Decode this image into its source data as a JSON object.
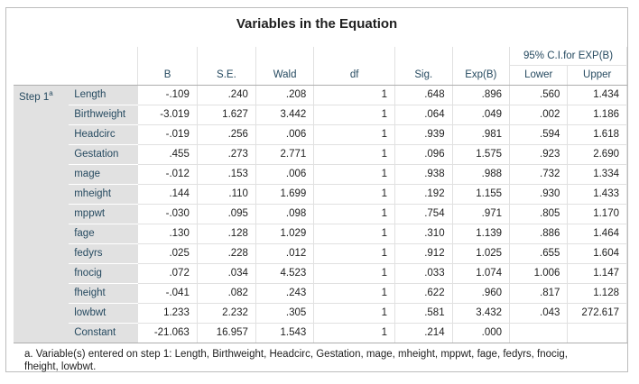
{
  "title": "Variables in the Equation",
  "ci_header": "95% C.I.for EXP(B)",
  "columns": [
    "B",
    "S.E.",
    "Wald",
    "df",
    "Sig.",
    "Exp(B)",
    "Lower",
    "Upper"
  ],
  "step_label": "Step 1",
  "step_sup": "a",
  "rows": [
    {
      "name": "Length",
      "B": "-.109",
      "SE": ".240",
      "Wald": ".208",
      "df": "1",
      "Sig": ".648",
      "ExpB": ".896",
      "Lower": ".560",
      "Upper": "1.434"
    },
    {
      "name": "Birthweight",
      "B": "-3.019",
      "SE": "1.627",
      "Wald": "3.442",
      "df": "1",
      "Sig": ".064",
      "ExpB": ".049",
      "Lower": ".002",
      "Upper": "1.186"
    },
    {
      "name": "Headcirc",
      "B": "-.019",
      "SE": ".256",
      "Wald": ".006",
      "df": "1",
      "Sig": ".939",
      "ExpB": ".981",
      "Lower": ".594",
      "Upper": "1.618"
    },
    {
      "name": "Gestation",
      "B": ".455",
      "SE": ".273",
      "Wald": "2.771",
      "df": "1",
      "Sig": ".096",
      "ExpB": "1.575",
      "Lower": ".923",
      "Upper": "2.690"
    },
    {
      "name": "mage",
      "B": "-.012",
      "SE": ".153",
      "Wald": ".006",
      "df": "1",
      "Sig": ".938",
      "ExpB": ".988",
      "Lower": ".732",
      "Upper": "1.334"
    },
    {
      "name": "mheight",
      "B": ".144",
      "SE": ".110",
      "Wald": "1.699",
      "df": "1",
      "Sig": ".192",
      "ExpB": "1.155",
      "Lower": ".930",
      "Upper": "1.433"
    },
    {
      "name": "mppwt",
      "B": "-.030",
      "SE": ".095",
      "Wald": ".098",
      "df": "1",
      "Sig": ".754",
      "ExpB": ".971",
      "Lower": ".805",
      "Upper": "1.170"
    },
    {
      "name": "fage",
      "B": ".130",
      "SE": ".128",
      "Wald": "1.029",
      "df": "1",
      "Sig": ".310",
      "ExpB": "1.139",
      "Lower": ".886",
      "Upper": "1.464"
    },
    {
      "name": "fedyrs",
      "B": ".025",
      "SE": ".228",
      "Wald": ".012",
      "df": "1",
      "Sig": ".912",
      "ExpB": "1.025",
      "Lower": ".655",
      "Upper": "1.604"
    },
    {
      "name": "fnocig",
      "B": ".072",
      "SE": ".034",
      "Wald": "4.523",
      "df": "1",
      "Sig": ".033",
      "ExpB": "1.074",
      "Lower": "1.006",
      "Upper": "1.147"
    },
    {
      "name": "fheight",
      "B": "-.041",
      "SE": ".082",
      "Wald": ".243",
      "df": "1",
      "Sig": ".622",
      "ExpB": ".960",
      "Lower": ".817",
      "Upper": "1.128"
    },
    {
      "name": "lowbwt",
      "B": "1.233",
      "SE": "2.232",
      "Wald": ".305",
      "df": "1",
      "Sig": ".581",
      "ExpB": "3.432",
      "Lower": ".043",
      "Upper": "272.617"
    },
    {
      "name": "Constant",
      "B": "-21.063",
      "SE": "16.957",
      "Wald": "1.543",
      "df": "1",
      "Sig": ".214",
      "ExpB": ".000",
      "Lower": "",
      "Upper": ""
    }
  ],
  "footnote": "a. Variable(s) entered on step 1: Length, Birthweight, Headcirc, Gestation, mage, mheight, mppwt, fage, fedyrs, fnocig, fheight, lowbwt."
}
